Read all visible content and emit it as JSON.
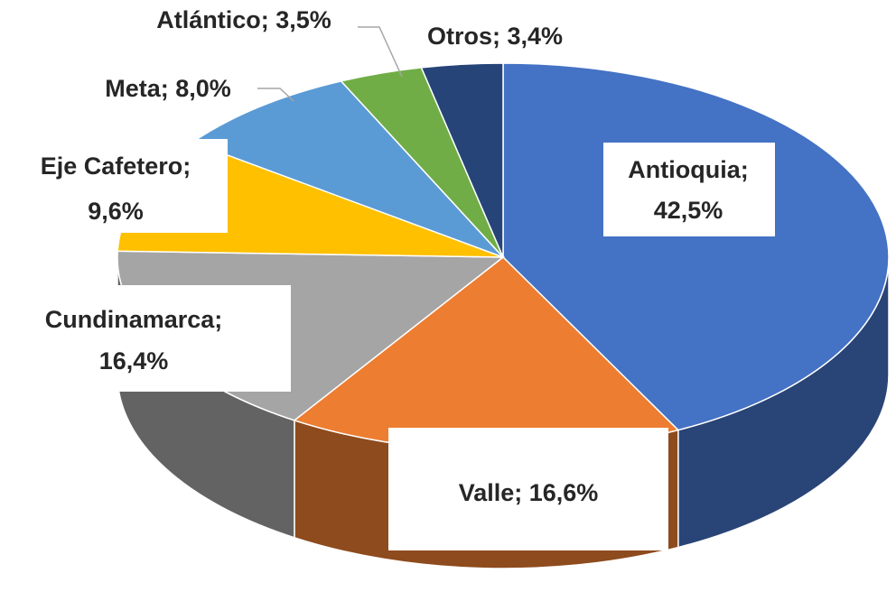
{
  "chart_data": {
    "type": "pie3d",
    "categories": [
      "Antioquia",
      "Valle",
      "Cundinamarca",
      "Eje Cafetero",
      "Meta",
      "Atlántico",
      "Otros"
    ],
    "values": [
      42.5,
      16.6,
      16.4,
      9.6,
      8.0,
      3.5,
      3.4
    ],
    "value_labels": [
      "42,5%",
      "16,6%",
      "16,4%",
      "9,6%",
      "8,0%",
      "3,5%",
      "3,4%"
    ],
    "label_separator": "; ",
    "colors": [
      "#4472c4",
      "#ed7d31",
      "#a5a5a5",
      "#ffc000",
      "#5b9bd5",
      "#70ad47",
      "#264478"
    ]
  }
}
